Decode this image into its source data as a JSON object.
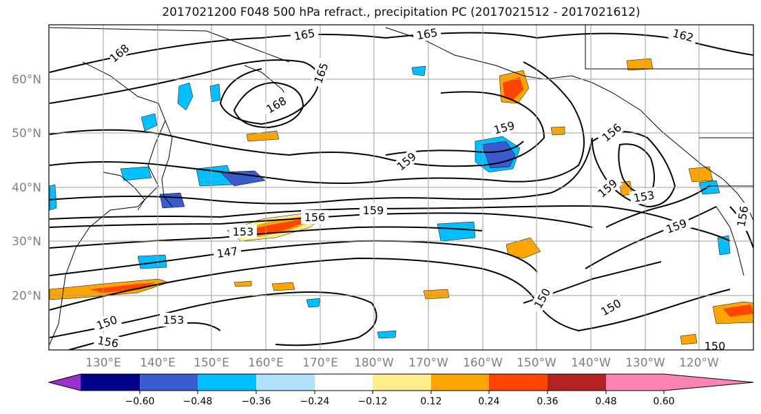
{
  "title": "2017021200 F048 500 hPa refract., precipitation PC (2017021512 - 2017021612)",
  "map": {
    "lat_labels": [
      "20°N",
      "30°N",
      "40°N",
      "50°N",
      "60°N"
    ],
    "lon_labels": [
      "130°E",
      "140°E",
      "150°E",
      "160°E",
      "170°E",
      "180°W",
      "170°W",
      "160°W",
      "150°W",
      "140°W",
      "130°W",
      "120°W"
    ],
    "contour_labels": [
      "168",
      "165",
      "165",
      "162",
      "165",
      "168",
      "159",
      "159",
      "156",
      "159",
      "153",
      "159",
      "156",
      "159",
      "156",
      "153",
      "147",
      "150",
      "153",
      "156",
      "150",
      "150",
      "150"
    ]
  },
  "colorbar": {
    "ticks": [
      "−0.60",
      "−0.48",
      "−0.36",
      "−0.24",
      "−0.12",
      "0.12",
      "0.24",
      "0.36",
      "0.48",
      "0.60"
    ],
    "colors": [
      "#9932cc",
      "#00008b",
      "#3a5bcd",
      "#00bfff",
      "#b0e2ff",
      "#ffffff",
      "#ffec8b",
      "#ffa500",
      "#ff4500",
      "#b22222",
      "#ff83b5"
    ]
  }
}
